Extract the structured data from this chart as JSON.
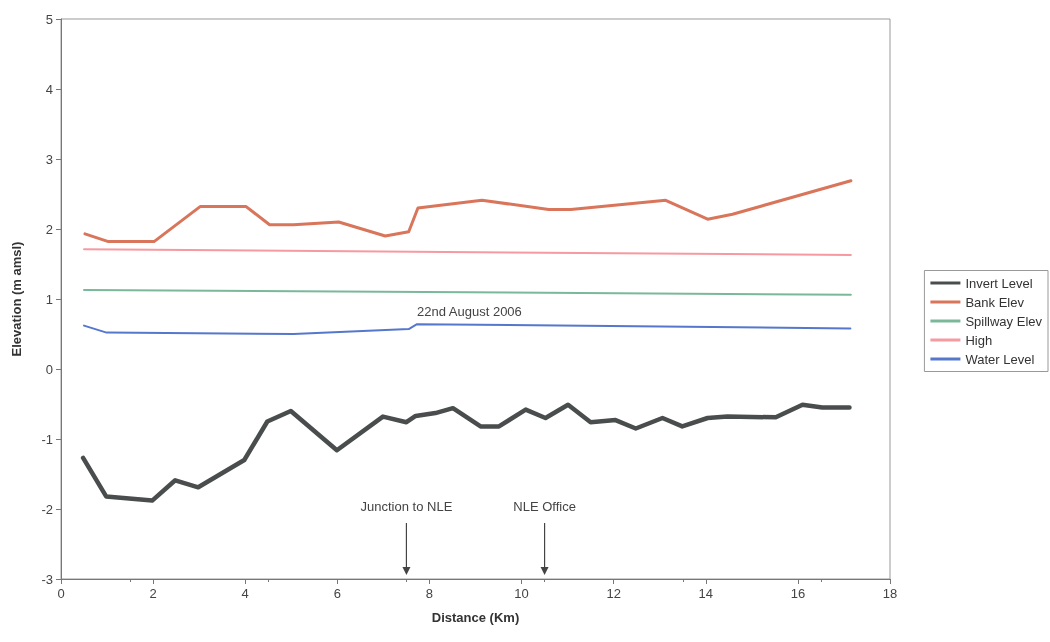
{
  "chart_data": {
    "type": "line",
    "xlabel": "Distance (Km)",
    "ylabel": "Elevation (m amsl)",
    "xlim": [
      0,
      18
    ],
    "xticks": [
      0,
      2,
      4,
      6,
      8,
      10,
      12,
      14,
      16,
      18
    ],
    "ylim": [
      -3,
      5
    ],
    "yticks": [
      -3,
      -2,
      -1,
      0,
      1,
      2,
      3,
      4,
      5
    ],
    "grid": false,
    "legend": "right",
    "marker": "none",
    "line_style": "solid",
    "series": [
      {
        "name": "Invert Level",
        "color": "#4a4d4d",
        "x": [
          0.48,
          0.98,
          1.98,
          2.48,
          2.98,
          3.98,
          4.48,
          4.99,
          5.99,
          6.99,
          7.5,
          7.7,
          8.13,
          8.51,
          9.11,
          9.51,
          10.09,
          10.52,
          11.01,
          11.5,
          12.04,
          12.48,
          13.06,
          13.49,
          14.04,
          14.47,
          15.52,
          16.1,
          16.53,
          17.12
        ],
        "values": [
          -1.27,
          -1.82,
          -1.88,
          -1.59,
          -1.69,
          -1.3,
          -0.75,
          -0.6,
          -1.16,
          -0.68,
          -0.76,
          -0.67,
          -0.63,
          -0.56,
          -0.82,
          -0.82,
          -0.58,
          -0.7,
          -0.51,
          -0.76,
          -0.73,
          -0.85,
          -0.7,
          -0.82,
          -0.7,
          -0.68,
          -0.69,
          -0.51,
          -0.55,
          -0.55
        ]
      },
      {
        "name": "Bank Elev",
        "color": "#d9755a",
        "x": [
          0.52,
          1.03,
          2.02,
          3.02,
          4.02,
          4.53,
          5.05,
          6.03,
          7.04,
          7.55,
          7.75,
          9.14,
          10.59,
          11.07,
          13.13,
          14.04,
          14.58,
          17.15
        ],
        "values": [
          1.93,
          1.82,
          1.82,
          2.32,
          2.32,
          2.06,
          2.06,
          2.1,
          1.9,
          1.96,
          2.3,
          2.41,
          2.28,
          2.28,
          2.41,
          2.14,
          2.21,
          2.69
        ]
      },
      {
        "name": "Spillway Elev",
        "color": "#7ab89a",
        "x": [
          0.5,
          17.15
        ],
        "values": [
          1.13,
          1.06
        ]
      },
      {
        "name": "High",
        "color": "#f59aa0",
        "x": [
          0.5,
          17.15
        ],
        "values": [
          1.71,
          1.63
        ]
      },
      {
        "name": "Water Level",
        "color": "#5577cc",
        "x": [
          0.5,
          0.99,
          5.05,
          7.55,
          7.73,
          17.14
        ],
        "values": [
          0.62,
          0.52,
          0.5,
          0.57,
          0.64,
          0.58
        ]
      }
    ],
    "ref_lines": [
      {
        "axis": "x",
        "value": 7.5,
        "label": "Junction to NLE"
      },
      {
        "axis": "x",
        "value": 10.5,
        "label": "NLE Office"
      }
    ],
    "annotations": [
      {
        "text": "22nd August 2006",
        "x": 7.73,
        "y": 0.64
      }
    ]
  }
}
